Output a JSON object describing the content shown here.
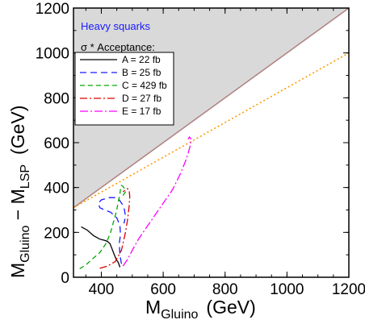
{
  "chart_data": {
    "type": "line",
    "xlabel": "M",
    "xlabel_sub": "Gluino",
    "xlabel_unit": "(GeV)",
    "ylabel_parts": {
      "m1": "M",
      "sub1": "Gluino",
      "mid": " − M",
      "sub2": "LSP",
      "unit": "(GeV)"
    },
    "xlim": [
      310,
      1200
    ],
    "ylim": [
      0,
      1200
    ],
    "xticks": [
      400,
      600,
      800,
      1000,
      1200
    ],
    "yticks": [
      0,
      200,
      400,
      600,
      800,
      1000,
      1200
    ],
    "annotation": "Heavy squarks",
    "legend_title": "σ * Acceptance:",
    "legend_position": "top-left",
    "excluded_region": {
      "boundary": "M_LSP = 0",
      "color": "#d9d9d9",
      "line_color": "#b08080"
    },
    "reference_line": {
      "x": [
        310,
        1200
      ],
      "y": [
        310,
        1000
      ],
      "style": "dotted",
      "color": "#ff9900"
    },
    "series": [
      {
        "name": "A = 22 fb",
        "color": "#000000",
        "dash": "",
        "x": [
          335,
          355,
          375,
          395,
          410,
          420,
          428,
          435,
          442,
          448,
          455,
          460
        ],
        "y": [
          225,
          210,
          185,
          170,
          165,
          160,
          150,
          125,
          100,
          80,
          65,
          45
        ]
      },
      {
        "name": "B = 25 fb",
        "color": "#1a1aff",
        "dash": "8,5",
        "x": [
          465,
          460,
          458,
          462,
          460,
          450,
          430,
          410,
          395,
          390,
          400,
          425,
          445,
          458,
          468,
          475,
          478,
          473
        ],
        "y": [
          60,
          100,
          150,
          190,
          230,
          265,
          290,
          300,
          310,
          330,
          345,
          355,
          355,
          345,
          325,
          300,
          270,
          240
        ]
      },
      {
        "name": "C = 429 fb",
        "color": "#00aa00",
        "dash": "6,4",
        "x": [
          330,
          350,
          370,
          395,
          415,
          430,
          440,
          450,
          455,
          460,
          462,
          465,
          470,
          475,
          478,
          470,
          462
        ],
        "y": [
          38,
          55,
          80,
          110,
          150,
          200,
          250,
          300,
          340,
          370,
          395,
          410,
          405,
          395,
          380,
          365,
          355
        ]
      },
      {
        "name": "D = 27 fb",
        "color": "#dd0000",
        "dash": "9,3,2,3",
        "x": [
          395,
          420,
          445,
          465,
          478,
          485,
          490,
          492,
          490,
          485,
          478,
          470
        ],
        "y": [
          40,
          50,
          70,
          120,
          200,
          260,
          320,
          360,
          385,
          395,
          390,
          380
        ]
      },
      {
        "name": "E = 17 fb",
        "color": "#ff00ff",
        "dash": "10,3,2,3",
        "x": [
          470,
          485,
          500,
          520,
          545,
          570,
          600,
          630,
          655,
          670,
          680,
          688,
          690,
          685,
          680
        ],
        "y": [
          50,
          80,
          120,
          170,
          220,
          270,
          330,
          390,
          460,
          510,
          550,
          590,
          615,
          625,
          615
        ]
      }
    ]
  }
}
